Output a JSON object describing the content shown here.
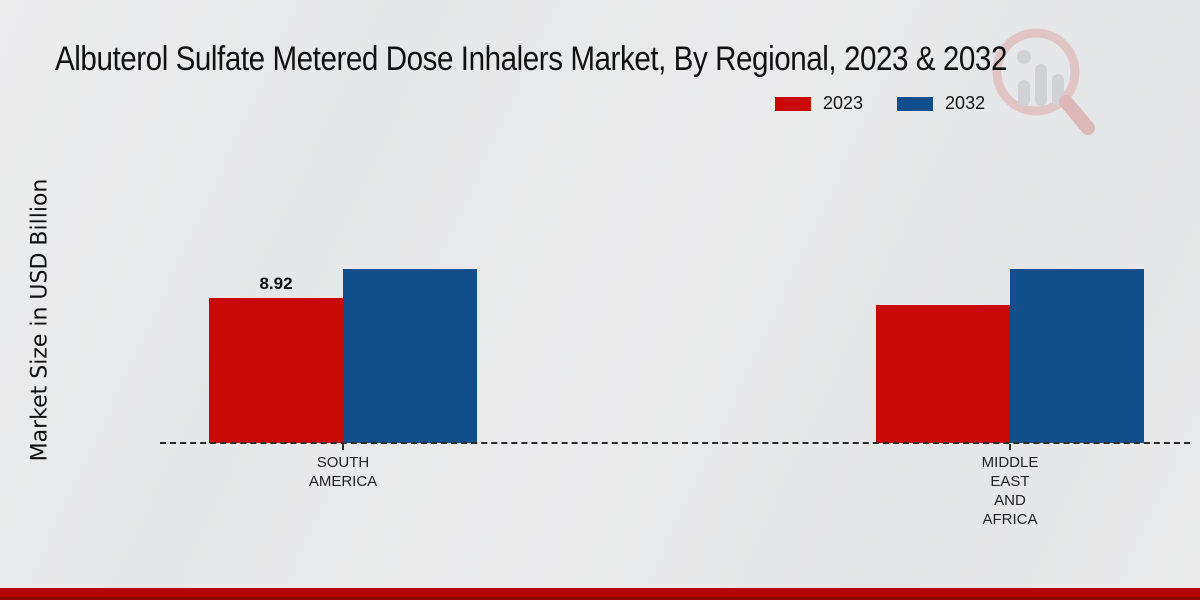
{
  "chart_data": {
    "type": "bar",
    "title": "Albuterol Sulfate Metered Dose Inhalers Market, By Regional, 2023 & 2032",
    "ylabel": "Market Size in USD Billion",
    "xlabel": "",
    "categories": [
      "SOUTH AMERICA",
      "MIDDLE EAST AND AFRICA"
    ],
    "series": [
      {
        "name": "2023",
        "color": "#c90808",
        "values": [
          8.92,
          8.49
        ],
        "bar_labels": [
          "8.92",
          ""
        ]
      },
      {
        "name": "2032",
        "color": "#114e8b",
        "values": [
          10.7,
          10.7
        ],
        "bar_labels": [
          "",
          ""
        ]
      }
    ],
    "ylim": [
      0,
      12
    ],
    "grid": false,
    "legend_position": "top-right",
    "legend_entries": [
      "2023",
      "2032"
    ],
    "baseline_style": "dashed",
    "value_label_shown": "8.92"
  },
  "icons": {
    "watermark": "market-research-magnifier-bar-chart-logo"
  },
  "colors": {
    "series_2023": "#c90808",
    "series_2032": "#114e8b",
    "footer_bar": "#b30505",
    "background": "#e9eaeb",
    "text": "#1a1a1a",
    "baseline": "#2b2b2b"
  }
}
